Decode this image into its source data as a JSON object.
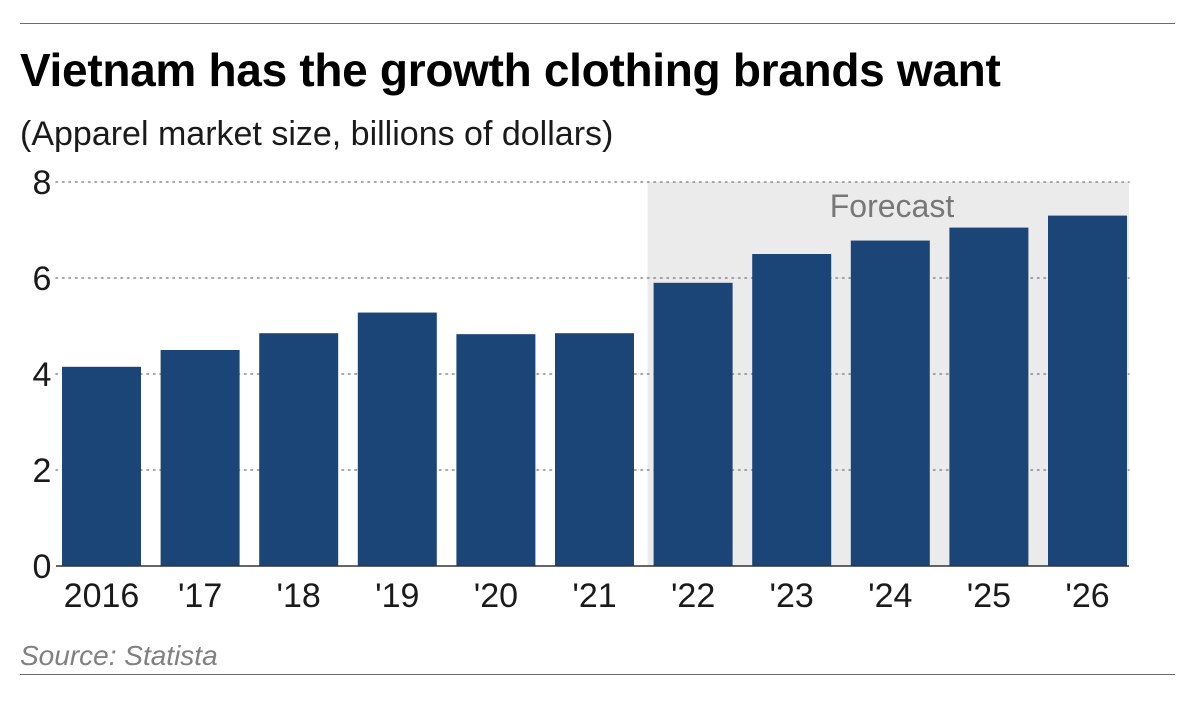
{
  "chart_data": {
    "type": "bar",
    "title": "Vietnam has the growth clothing brands want",
    "subtitle": "(Apparel market size, billions of dollars)",
    "categories": [
      "2016",
      "'17",
      "'18",
      "'19",
      "'20",
      "'21",
      "'22",
      "'23",
      "'24",
      "'25",
      "'26"
    ],
    "values": [
      4.15,
      4.5,
      4.85,
      5.28,
      4.83,
      4.85,
      5.9,
      6.5,
      6.78,
      7.05,
      7.3
    ],
    "yticks": [
      "0",
      "2",
      "4",
      "6",
      "8"
    ],
    "ylim": [
      0,
      8
    ],
    "grid": true,
    "bar_color": "#1b4477",
    "forecast": {
      "label": "Forecast",
      "start_category": "'22",
      "shade_color": "#ebebeb"
    },
    "source": "Source: Statista"
  }
}
